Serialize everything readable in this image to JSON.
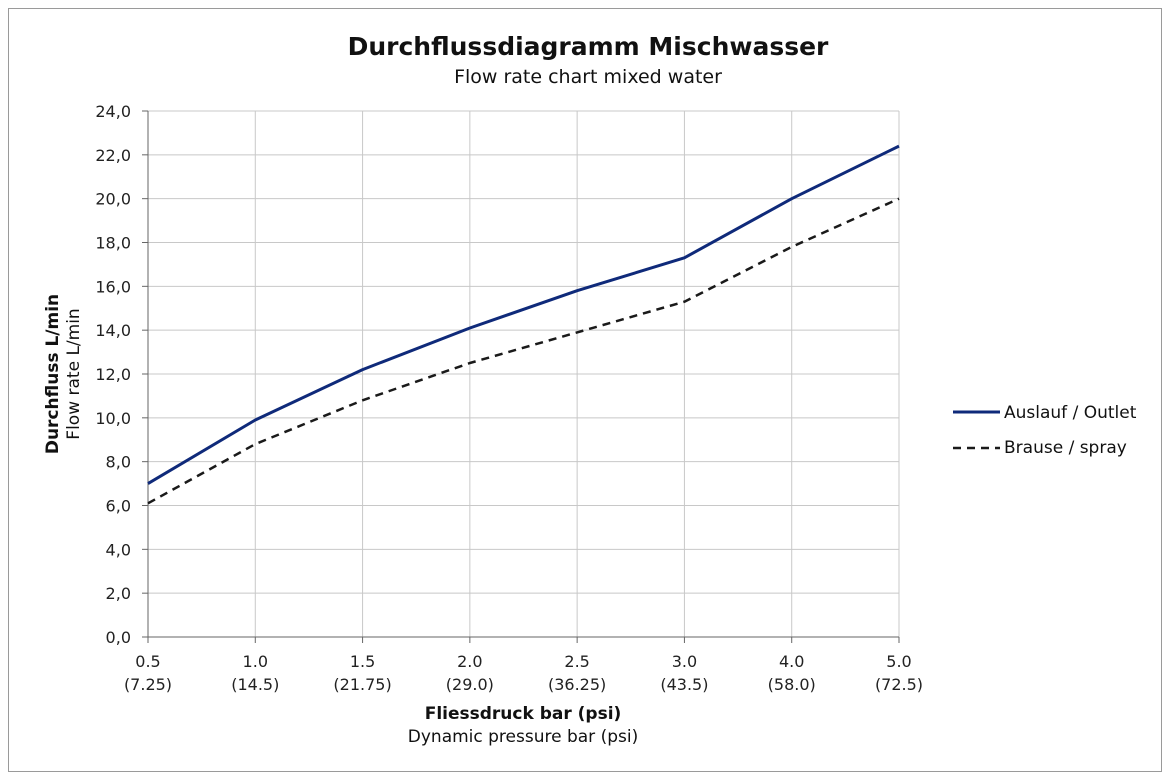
{
  "chart_data": {
    "type": "line",
    "title": "Durchflussdiagramm Mischwasser",
    "subtitle": "Flow rate chart mixed water",
    "xlabel": "Fliessdruck bar (psi)",
    "xlabel_secondary": "Dynamic pressure bar (psi)",
    "ylabel": "Durchfluss L/min",
    "ylabel_secondary": "Flow rate L/min",
    "categories": [
      "0.5",
      "1.0",
      "1.5",
      "2.0",
      "2.5",
      "3.0",
      "4.0",
      "5.0"
    ],
    "categories_secondary": [
      "(7.25)",
      "(14.5)",
      "(21.75)",
      "(29.0)",
      "(36.25)",
      "(43.5)",
      "(58.0)",
      "(72.5)"
    ],
    "ylim": [
      0,
      24
    ],
    "yticks": [
      "0,0",
      "2,0",
      "4,0",
      "6,0",
      "8,0",
      "10,0",
      "12,0",
      "14,0",
      "16,0",
      "18,0",
      "20,0",
      "22,0",
      "24,0"
    ],
    "grid": true,
    "legend_position": "right",
    "series": [
      {
        "name": "Auslauf / Outlet",
        "values": [
          7.0,
          9.9,
          12.2,
          14.1,
          15.8,
          17.3,
          20.0,
          22.4
        ],
        "color": "#0f2a7a",
        "style": "solid"
      },
      {
        "name": "Brause / spray",
        "values": [
          6.1,
          8.8,
          10.8,
          12.5,
          13.9,
          15.3,
          17.8,
          20.0
        ],
        "color": "#1a1a1a",
        "style": "dashed"
      }
    ]
  }
}
